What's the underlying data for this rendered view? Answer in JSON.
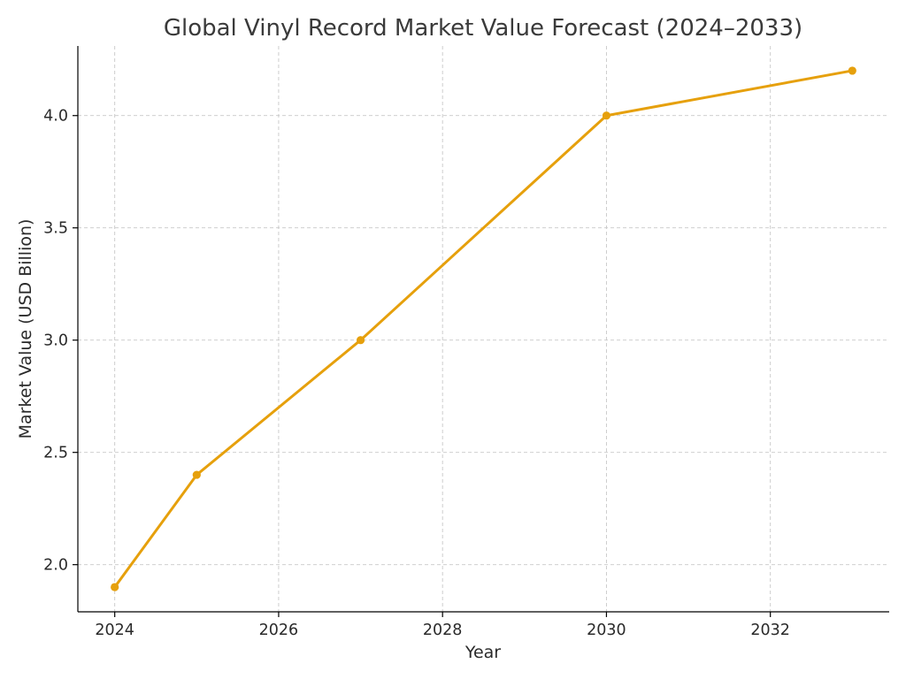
{
  "chart_data": {
    "type": "line",
    "title": "Global Vinyl Record Market Value Forecast (2024–2033)",
    "xlabel": "Year",
    "ylabel": "Market Value (USD Billion)",
    "x": [
      2024,
      2025,
      2027,
      2030,
      2033
    ],
    "series": [
      {
        "values": [
          1.9,
          2.4,
          3.0,
          4.0,
          4.2
        ],
        "color": "#e6a00c",
        "marker": "circle"
      }
    ],
    "xlim": [
      2023.55,
      2033.45
    ],
    "ylim": [
      1.79,
      4.31
    ],
    "xticks": [
      2024,
      2026,
      2028,
      2030,
      2032
    ],
    "xtick_labels": [
      "2024",
      "2026",
      "2028",
      "2030",
      "2032"
    ],
    "yticks": [
      2.0,
      2.5,
      3.0,
      3.5,
      4.0
    ],
    "ytick_labels": [
      "2.0",
      "2.5",
      "3.0",
      "3.5",
      "4.0"
    ],
    "grid": true,
    "legend": false
  }
}
